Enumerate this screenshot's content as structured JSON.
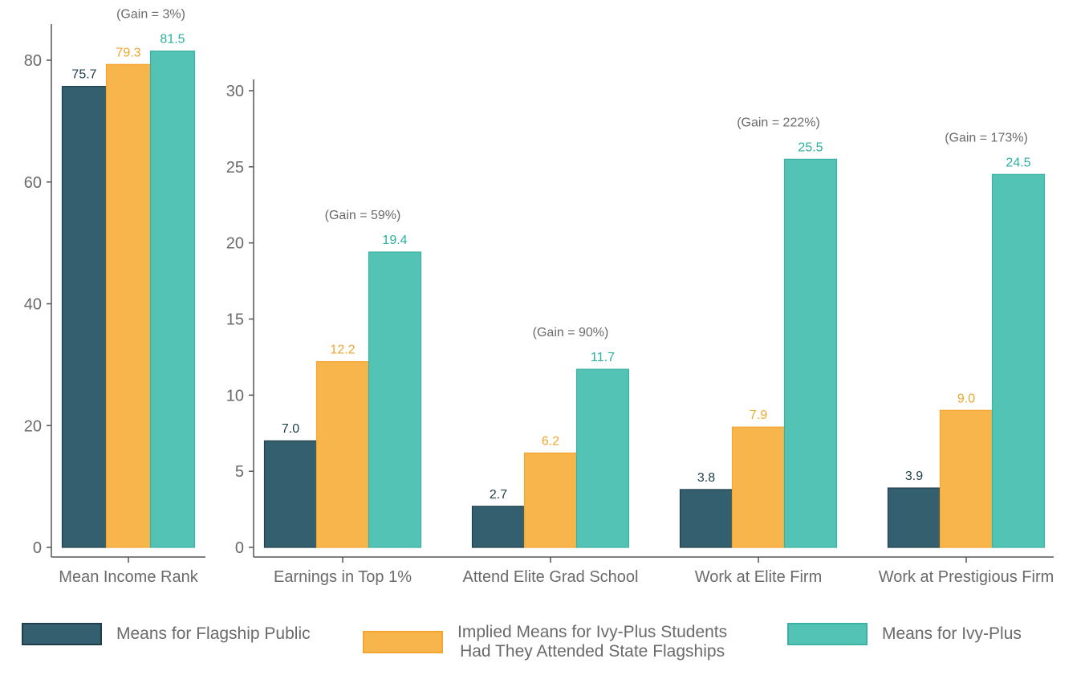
{
  "chart_data": [
    {
      "type": "bar",
      "categories": [
        "Mean Income Rank"
      ],
      "ylim": [
        0,
        86
      ],
      "yticks": [
        0,
        20,
        40,
        60,
        80
      ],
      "series": [
        {
          "name": "Means for Flagship Public",
          "values": [
            75.7
          ],
          "labels": [
            "75.7"
          ]
        },
        {
          "name": "Implied Means for Ivy-Plus Students Had They Attended State Flagships",
          "values": [
            79.3
          ],
          "labels": [
            "79.3"
          ]
        },
        {
          "name": "Means for Ivy-Plus",
          "values": [
            81.5
          ],
          "labels": [
            "81.5"
          ]
        }
      ],
      "annotations": [
        "(Gain = 3%)"
      ],
      "grid": false
    },
    {
      "type": "bar",
      "categories": [
        "Earnings in Top 1%",
        "Attend Elite Grad School",
        "Work at Elite Firm",
        "Work at Prestigious Firm"
      ],
      "ylim": [
        0,
        30.5
      ],
      "yticks": [
        0,
        5,
        10,
        15,
        20,
        25,
        30
      ],
      "series": [
        {
          "name": "Means for Flagship Public",
          "values": [
            7.0,
            2.7,
            3.8,
            3.9
          ],
          "labels": [
            "7.0",
            "2.7",
            "3.8",
            "3.9"
          ]
        },
        {
          "name": "Implied Means for Ivy-Plus Students Had They Attended State Flagships",
          "values": [
            12.2,
            6.2,
            7.9,
            9.0
          ],
          "labels": [
            "12.2",
            "6.2",
            "7.9",
            "9.0"
          ]
        },
        {
          "name": "Means for Ivy-Plus",
          "values": [
            19.4,
            11.7,
            25.5,
            24.5
          ],
          "labels": [
            "19.4",
            "11.7",
            "25.5",
            "24.5"
          ]
        }
      ],
      "annotations": [
        "(Gain = 59%)",
        "(Gain = 90%)",
        "(Gain = 222%)",
        "(Gain = 173%)"
      ],
      "grid": false
    }
  ],
  "colors": {
    "flagship": "#335f6e",
    "flagship_border": "#213f4a",
    "implied": "#f8b54c",
    "implied_border": "#f3a52d",
    "ivy": "#52c3b5",
    "ivy_border": "#3cb0a2",
    "flagship_label": "#213f4a",
    "implied_label": "#f0a52d",
    "ivy_label": "#2aaea0",
    "axis": "#555555",
    "text": "#6a6a6a"
  },
  "legend": {
    "items": [
      {
        "label": "Means for Flagship Public"
      },
      {
        "label": "Implied Means for Ivy-Plus Students\nHad They Attended State Flagships"
      },
      {
        "label": "Means for Ivy-Plus"
      }
    ]
  }
}
